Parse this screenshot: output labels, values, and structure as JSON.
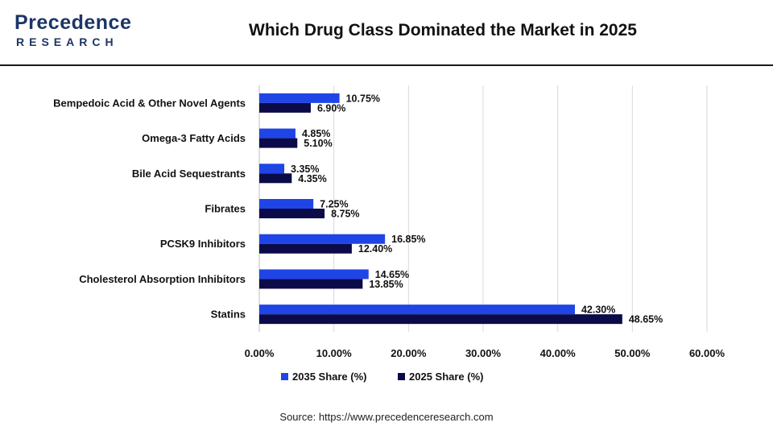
{
  "header": {
    "logo_main": "Precedence",
    "logo_sub": "RESEARCH",
    "title": "Which Drug Class Dominated the Market in 2025"
  },
  "source": "Source: https://www.precedenceresearch.com",
  "colors": {
    "series_2035": "#1f45e6",
    "series_2025": "#0b0b4a",
    "grid": "#d9d9d9",
    "logo": "#1b3566"
  },
  "chart_data": {
    "type": "bar",
    "orientation": "horizontal",
    "categories": [
      "Bempedoic Acid & Other Novel Agents",
      "Omega-3 Fatty Acids",
      "Bile Acid Sequestrants",
      "Fibrates",
      "PCSK9 Inhibitors",
      "Cholesterol Absorption Inhibitors",
      "Statins"
    ],
    "series": [
      {
        "name": "2035 Share (%)",
        "values": [
          10.75,
          4.85,
          3.35,
          7.25,
          16.85,
          14.65,
          42.3
        ],
        "labels": [
          "10.75%",
          "4.85%",
          "3.35%",
          "7.25%",
          "16.85%",
          "14.65%",
          "42.30%"
        ]
      },
      {
        "name": "2025 Share (%)",
        "values": [
          6.9,
          5.1,
          4.35,
          8.75,
          12.4,
          13.85,
          48.65
        ],
        "labels": [
          "6.90%",
          "5.10%",
          "4.35%",
          "8.75%",
          "12.40%",
          "13.85%",
          "48.65%"
        ]
      }
    ],
    "xlim": [
      0,
      60
    ],
    "xticks": [
      0,
      10,
      20,
      30,
      40,
      50,
      60
    ],
    "xtick_labels": [
      "0.00%",
      "10.00%",
      "20.00%",
      "30.00%",
      "40.00%",
      "50.00%",
      "60.00%"
    ],
    "grid": "vertical",
    "legend_position": "bottom-center"
  }
}
